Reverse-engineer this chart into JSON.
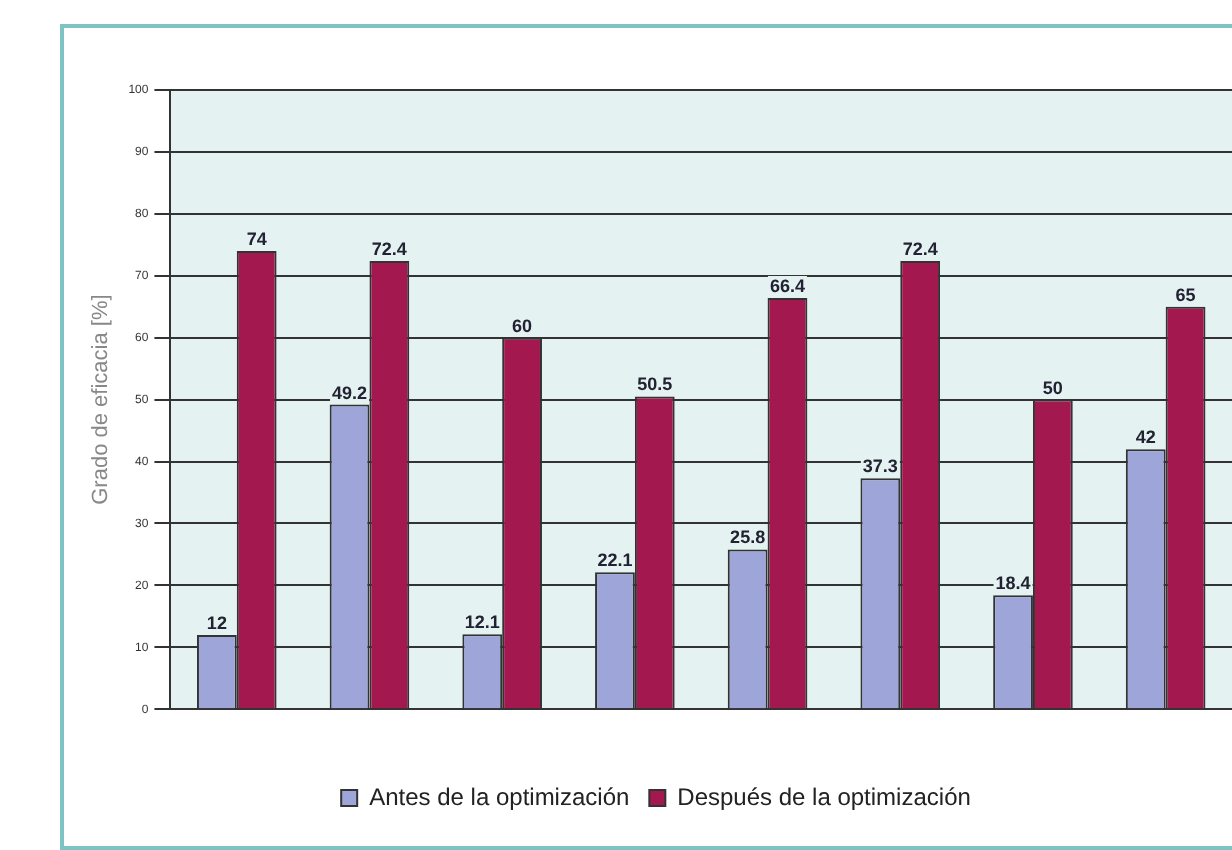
{
  "chart_data": {
    "type": "bar",
    "ylabel": "Grado de eficacia [%]",
    "categories": [
      null,
      null,
      null,
      null,
      null,
      null,
      null,
      null
    ],
    "series": [
      {
        "name": "Antes de la optimización",
        "color": "#9ea6d9",
        "values": [
          12,
          49.2,
          12.1,
          22.1,
          25.8,
          37.3,
          18.4,
          42
        ]
      },
      {
        "name": "Después de la optimización",
        "color": "#a3184f",
        "values": [
          74,
          72.4,
          60,
          50.5,
          66.4,
          72.4,
          50,
          65
        ]
      }
    ],
    "ylim": [
      0,
      100
    ],
    "yticks": [
      0,
      10,
      20,
      30,
      40,
      50,
      60,
      70,
      80,
      90,
      100
    ],
    "grid": "y",
    "legend": "bottom",
    "data_labels": true
  }
}
